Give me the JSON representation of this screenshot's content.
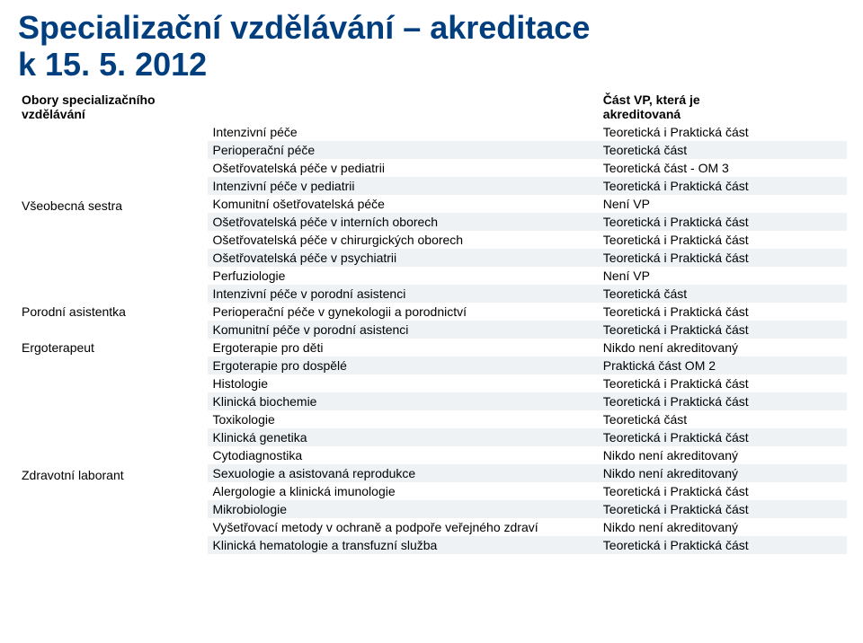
{
  "title_color": "#003e7e",
  "title_line1": "Specializační vzdělávání – akreditace",
  "title_line2": "k 15. 5. 2012",
  "header": {
    "col1": "Obory specializačního vzdělávání",
    "col3_line1": "Část VP, která je",
    "col3_line2": "akreditovaná"
  },
  "colors": {
    "row_a": "#ffffff",
    "row_b": "#eef2f5"
  },
  "groups": [
    {
      "name": "Všeobecná sestra",
      "rows": [
        {
          "course": "Intenzivní péče",
          "status": "Teoretická i Praktická část"
        },
        {
          "course": "Perioperační péče",
          "status": "Teoretická část"
        },
        {
          "course": "Ošetřovatelská péče v pediatrii",
          "status": "Teoretická část - OM 3"
        },
        {
          "course": "Intenzivní péče v pediatrii",
          "status": "Teoretická i Praktická část"
        },
        {
          "course": "Komunitní ošetřovatelská péče",
          "status": "Není VP"
        },
        {
          "course": "Ošetřovatelská péče v interních oborech",
          "status": "Teoretická i Praktická část"
        },
        {
          "course": "Ošetřovatelská péče v chirurgických oborech",
          "status": "Teoretická i Praktická část"
        },
        {
          "course": "Ošetřovatelská péče v psychiatrii",
          "status": "Teoretická i Praktická část"
        },
        {
          "course": "Perfuziologie",
          "status": "Není VP"
        }
      ],
      "label_row_index": 4
    },
    {
      "name": "Porodní asistentka",
      "rows": [
        {
          "course": "Intenzivní péče v porodní asistenci",
          "status": "Teoretická část"
        },
        {
          "course": "Perioperační péče v gynekologii a porodnictví",
          "status": "Teoretická i Praktická část"
        },
        {
          "course": "Komunitní péče v porodní asistenci",
          "status": "Teoretická i Praktická část"
        }
      ],
      "label_row_index": 1
    },
    {
      "name": "Ergoterapeut",
      "rows": [
        {
          "course": "Ergoterapie pro děti",
          "status": " Nikdo není akreditovaný"
        },
        {
          "course": "Ergoterapie pro dospělé",
          "status": "Praktická část OM 2"
        }
      ],
      "label_row_index": 0
    },
    {
      "name": "Zdravotní laborant",
      "rows": [
        {
          "course": "Histologie",
          "status": "Teoretická i Praktická část"
        },
        {
          "course": "Klinická biochemie",
          "status": "Teoretická i Praktická část"
        },
        {
          "course": "Toxikologie",
          "status": "Teoretická část"
        },
        {
          "course": "Klinická genetika",
          "status": "Teoretická i Praktická část"
        },
        {
          "course": "Cytodiagnostika",
          "status": " Nikdo není akreditovaný"
        },
        {
          "course": "Sexuologie a asistovaná reprodukce",
          "status": " Nikdo není akreditovaný"
        },
        {
          "course": "Alergologie a klinická imunologie",
          "status": "Teoretická i Praktická část"
        },
        {
          "course": "Mikrobiologie",
          "status": "Teoretická i Praktická část"
        },
        {
          "course": "Vyšetřovací metody v ochraně a podpoře veřejného zdraví",
          "status": " Nikdo není akreditovaný"
        },
        {
          "course": "Klinická hematologie a transfuzní služba",
          "status": "Teoretická i Praktická část"
        }
      ],
      "label_row_index": 5
    }
  ],
  "col_widths": {
    "c1": "23%",
    "c2": "47%",
    "c3": "30%"
  }
}
